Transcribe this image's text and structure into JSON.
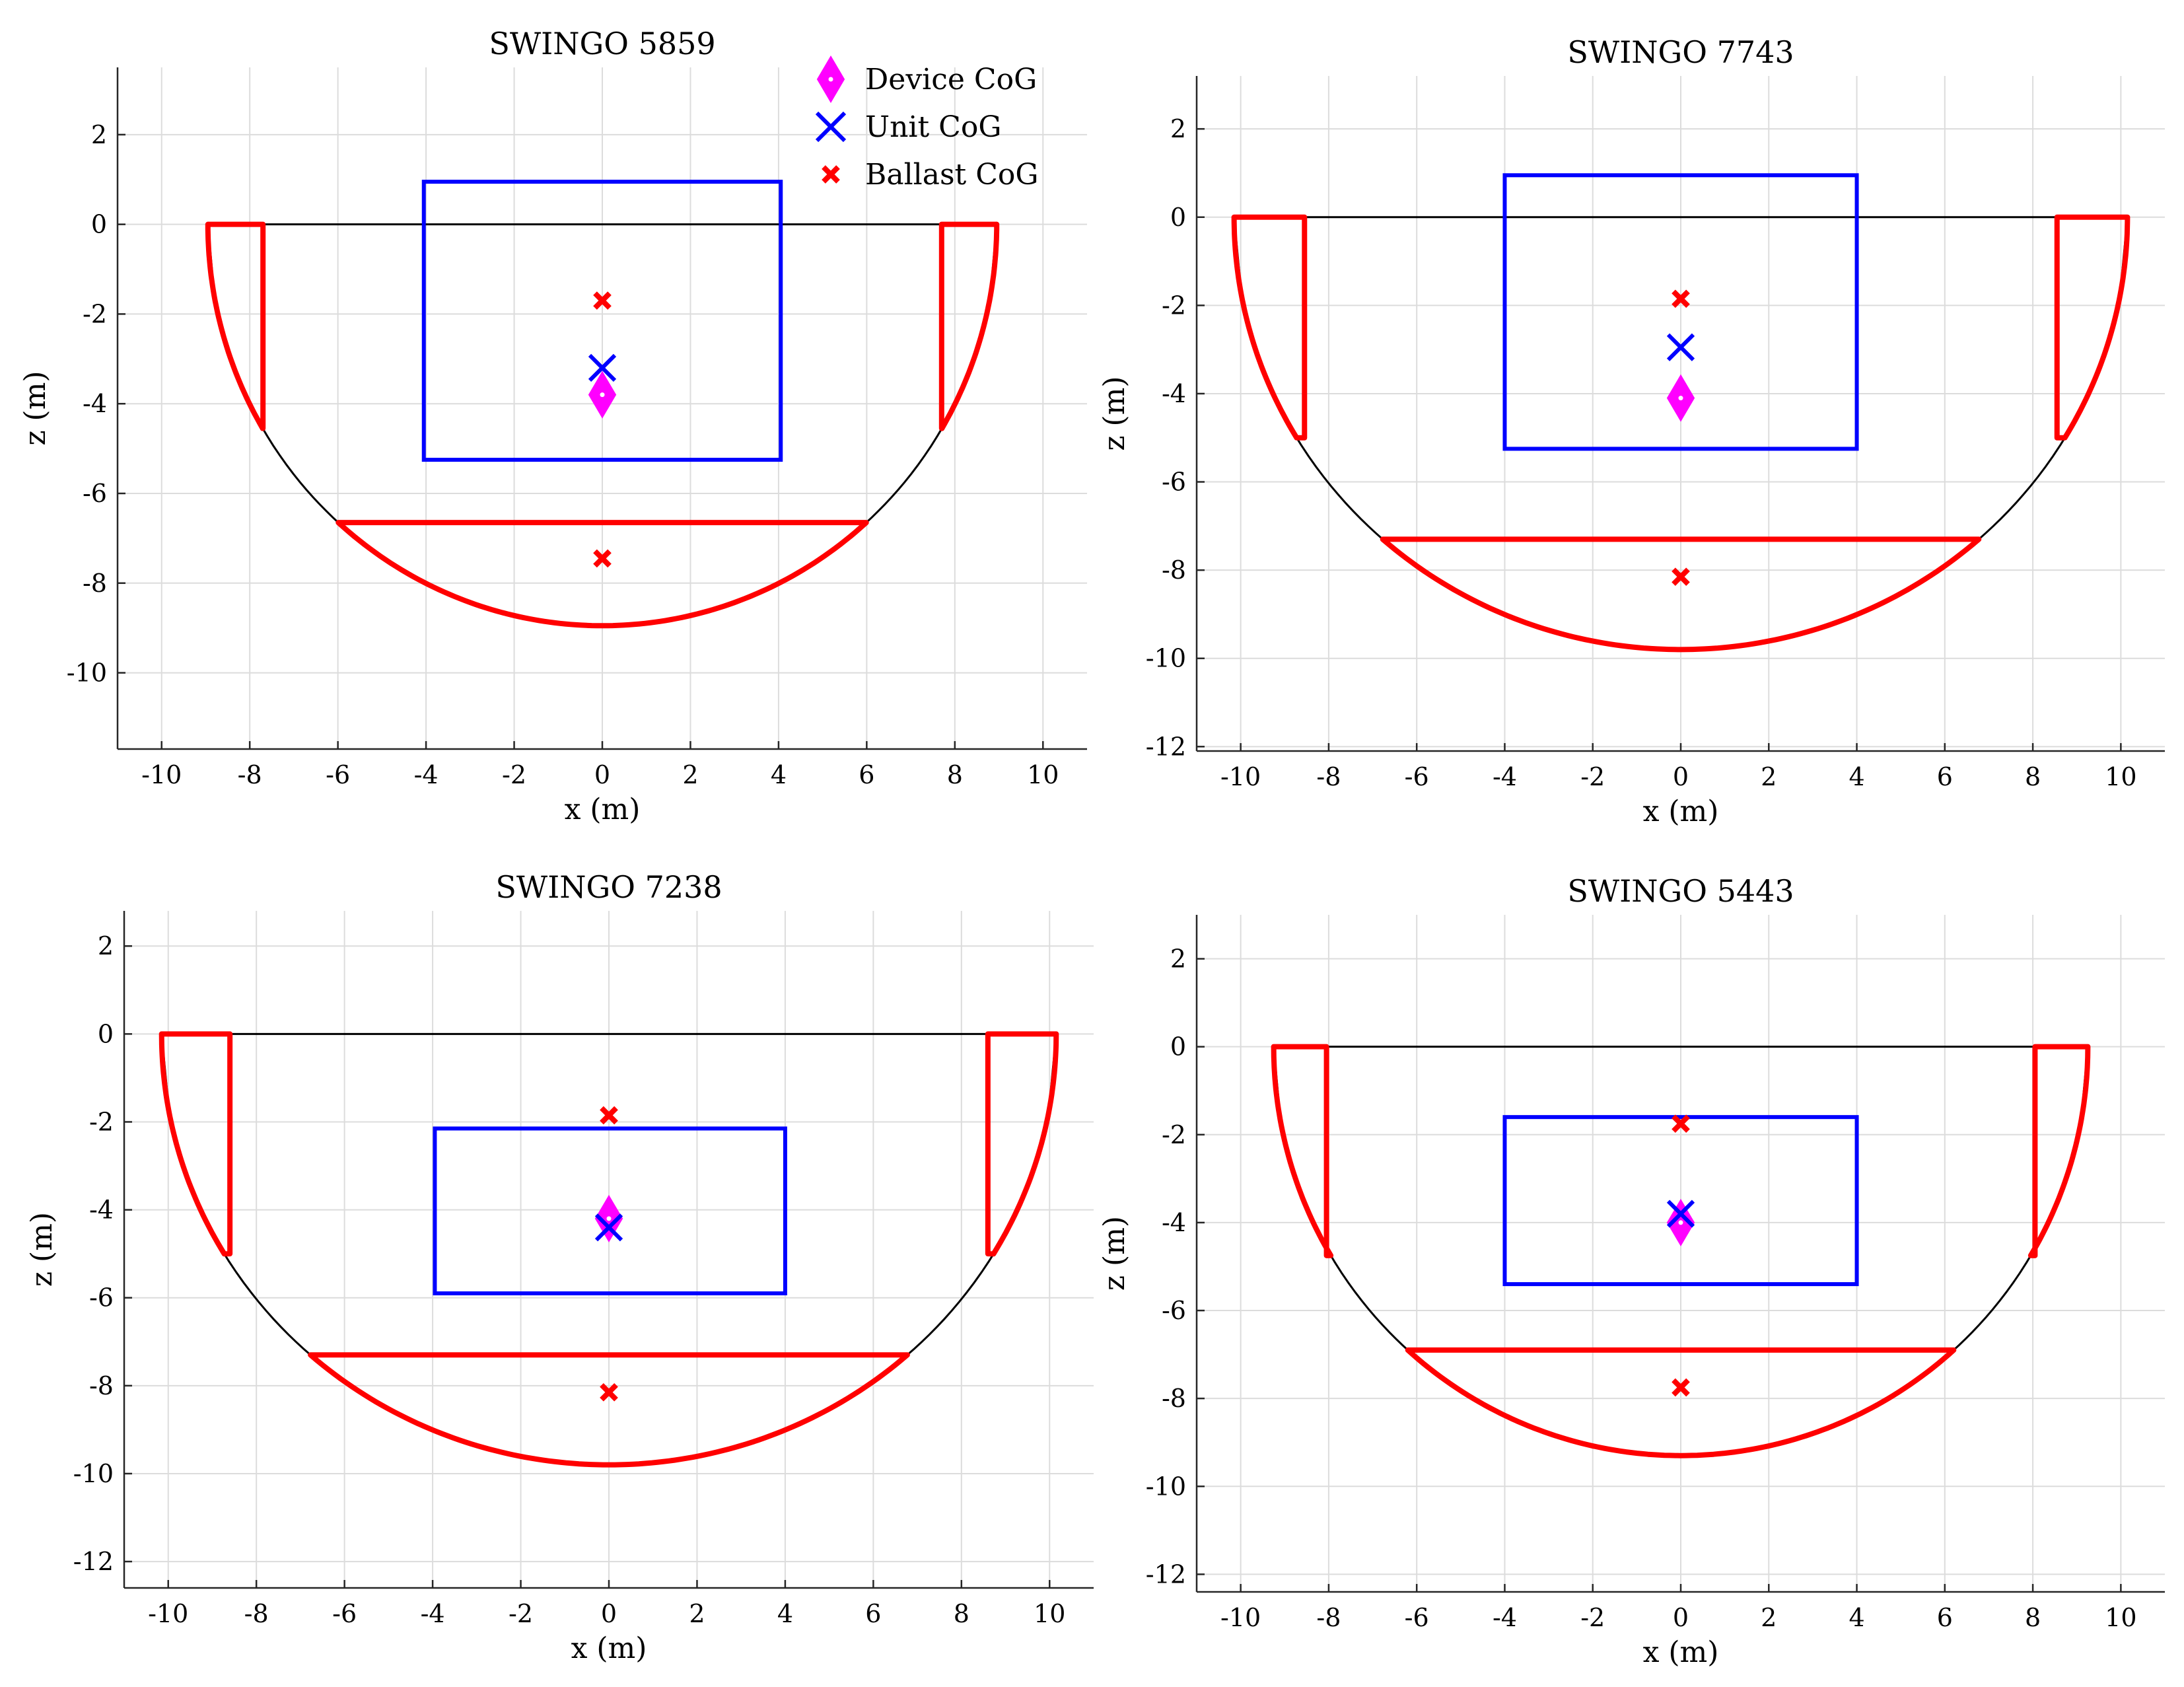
{
  "colors": {
    "hull": "#000000",
    "ballast": "#ff0000",
    "unit_box": "#0000ff",
    "device_cog": "#ff00ff",
    "unit_cog": "#0000ff",
    "ballast_cog": "#ff0000",
    "grid": "#dcdcdc"
  },
  "legend": {
    "entries": [
      {
        "label": "Device CoG",
        "marker": "diamond-icon"
      },
      {
        "label": "Unit CoG",
        "marker": "x-icon"
      },
      {
        "label": "Ballast CoG",
        "marker": "bold-x-icon"
      }
    ]
  },
  "chart_data": [
    {
      "type": "scatter",
      "title": "SWINGO 5859",
      "xlabel": "x (m)",
      "ylabel": "z (m)",
      "xlim": [
        -11,
        11
      ],
      "ylim": [
        -11.7,
        3.5
      ],
      "xticks": [
        -10,
        -8,
        -6,
        -4,
        -2,
        0,
        2,
        4,
        6,
        8,
        10
      ],
      "yticks": [
        -10,
        -8,
        -6,
        -4,
        -2,
        0,
        2
      ],
      "grid": true,
      "legend_position": "top-right",
      "hull": {
        "half_width": 8.95,
        "depth": 8.95
      },
      "side_tanks": {
        "outer_x": 8.95,
        "inner_x": 7.7,
        "bottom_z": -4.55
      },
      "bottom_ballast": {
        "top_z": -6.65,
        "bottom_z": -8.95
      },
      "unit_box": {
        "x": [
          -4.05,
          4.05
        ],
        "z": [
          -5.25,
          0.95
        ]
      },
      "device_cog": {
        "x": 0,
        "z": -3.8
      },
      "unit_cog": {
        "x": 0,
        "z": -3.2
      },
      "ballast_cog": [
        {
          "x": 0,
          "z": -1.7
        },
        {
          "x": 0,
          "z": -7.45
        }
      ]
    },
    {
      "type": "scatter",
      "title": "SWINGO 7743",
      "xlabel": "x (m)",
      "ylabel": "z (m)",
      "xlim": [
        -11,
        11
      ],
      "ylim": [
        -12.1,
        3.2
      ],
      "xticks": [
        -10,
        -8,
        -6,
        -4,
        -2,
        0,
        2,
        4,
        6,
        8,
        10
      ],
      "yticks": [
        -12,
        -10,
        -8,
        -6,
        -4,
        -2,
        0,
        2
      ],
      "grid": true,
      "hull": {
        "half_width": 10.15,
        "depth": 9.8
      },
      "side_tanks": {
        "outer_x": 10.15,
        "inner_x": 8.55,
        "bottom_z": -5.0
      },
      "bottom_ballast": {
        "top_z": -7.3,
        "bottom_z": -9.8
      },
      "unit_box": {
        "x": [
          -4.0,
          4.0
        ],
        "z": [
          -5.25,
          0.95
        ]
      },
      "device_cog": {
        "x": 0,
        "z": -4.1
      },
      "unit_cog": {
        "x": 0,
        "z": -2.95
      },
      "ballast_cog": [
        {
          "x": 0,
          "z": -1.85
        },
        {
          "x": 0,
          "z": -8.15
        }
      ]
    },
    {
      "type": "scatter",
      "title": "SWINGO 7238",
      "xlabel": "x (m)",
      "ylabel": "z (m)",
      "xlim": [
        -11,
        11
      ],
      "ylim": [
        -12.6,
        2.8
      ],
      "xticks": [
        -10,
        -8,
        -6,
        -4,
        -2,
        0,
        2,
        4,
        6,
        8,
        10
      ],
      "yticks": [
        -12,
        -10,
        -8,
        -6,
        -4,
        -2,
        0,
        2
      ],
      "grid": true,
      "hull": {
        "half_width": 10.15,
        "depth": 9.8
      },
      "side_tanks": {
        "outer_x": 10.15,
        "inner_x": 8.6,
        "bottom_z": -5.0
      },
      "bottom_ballast": {
        "top_z": -7.3,
        "bottom_z": -9.8
      },
      "unit_box": {
        "x": [
          -3.95,
          4.0
        ],
        "z": [
          -5.9,
          -2.15
        ]
      },
      "device_cog": {
        "x": 0,
        "z": -4.2
      },
      "unit_cog": {
        "x": 0,
        "z": -4.4
      },
      "ballast_cog": [
        {
          "x": 0,
          "z": -1.85
        },
        {
          "x": 0,
          "z": -8.15
        }
      ]
    },
    {
      "type": "scatter",
      "title": "SWINGO 5443",
      "xlabel": "x (m)",
      "ylabel": "z (m)",
      "xlim": [
        -11,
        11
      ],
      "ylim": [
        -12.4,
        3.0
      ],
      "xticks": [
        -10,
        -8,
        -6,
        -4,
        -2,
        0,
        2,
        4,
        6,
        8,
        10
      ],
      "yticks": [
        -12,
        -10,
        -8,
        -6,
        -4,
        -2,
        0,
        2
      ],
      "grid": true,
      "hull": {
        "half_width": 9.25,
        "depth": 9.3
      },
      "side_tanks": {
        "outer_x": 9.25,
        "inner_x": 8.05,
        "bottom_z": -4.75
      },
      "bottom_ballast": {
        "top_z": -6.9,
        "bottom_z": -9.3
      },
      "unit_box": {
        "x": [
          -4.0,
          4.0
        ],
        "z": [
          -5.4,
          -1.6
        ]
      },
      "device_cog": {
        "x": 0,
        "z": -4.0
      },
      "unit_cog": {
        "x": 0,
        "z": -3.8
      },
      "ballast_cog": [
        {
          "x": 0,
          "z": -1.75
        },
        {
          "x": 0,
          "z": -7.75
        }
      ]
    }
  ]
}
